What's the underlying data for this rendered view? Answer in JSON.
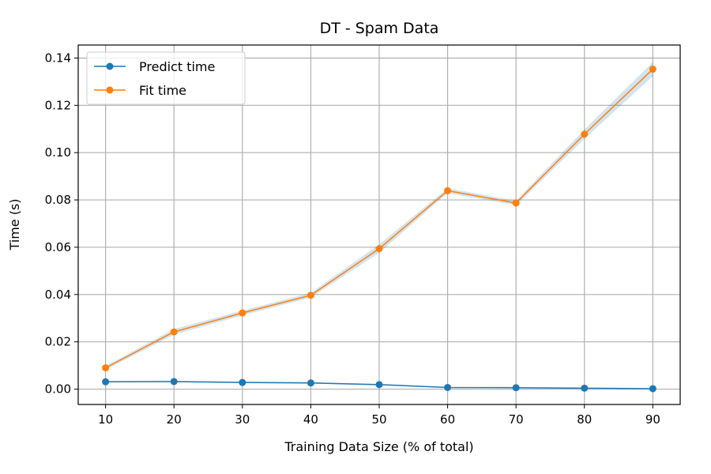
{
  "chart_data": {
    "type": "line",
    "title": "DT - Spam Data",
    "xlabel": "Training Data Size (% of total)",
    "ylabel": "Time (s)",
    "x": [
      10,
      20,
      30,
      40,
      50,
      60,
      70,
      80,
      90
    ],
    "x_ticks": [
      "10",
      "20",
      "30",
      "40",
      "50",
      "60",
      "70",
      "80",
      "90"
    ],
    "y_ticks": [
      "0.00",
      "0.02",
      "0.04",
      "0.06",
      "0.08",
      "0.10",
      "0.12",
      "0.14"
    ],
    "xlim": [
      6,
      94
    ],
    "ylim": [
      -0.0065,
      0.1455
    ],
    "grid": true,
    "legend_position": "top-left",
    "series": [
      {
        "name": "Predict time",
        "color": "#1f77b4",
        "values": [
          0.0031,
          0.0032,
          0.0028,
          0.0026,
          0.0019,
          0.0007,
          0.0006,
          0.0004,
          0.0002
        ],
        "band": [
          0.0003,
          0.0003,
          0.0003,
          0.0003,
          0.0003,
          0.0002,
          0.0002,
          0.0002,
          0.0001
        ]
      },
      {
        "name": "Fit time",
        "color": "#ff7f0e",
        "values": [
          0.009,
          0.0242,
          0.0322,
          0.0397,
          0.0594,
          0.0839,
          0.0787,
          0.1078,
          0.1353
        ],
        "band": [
          0.0008,
          0.0012,
          0.001,
          0.001,
          0.0018,
          0.001,
          0.001,
          0.002,
          0.003
        ]
      }
    ]
  }
}
